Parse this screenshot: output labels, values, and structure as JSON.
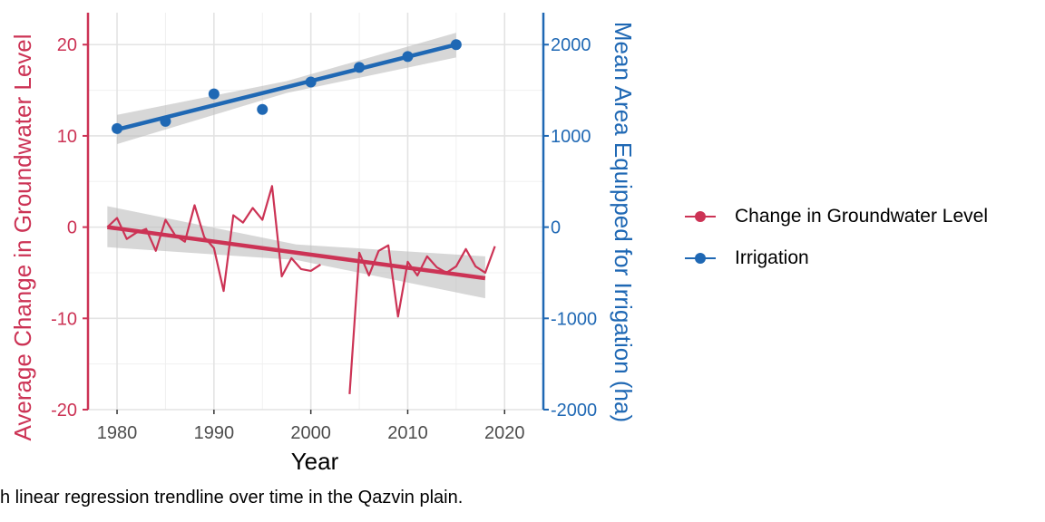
{
  "caption": "h linear regression trendline over time in the Qazvin plain.",
  "chart_data": {
    "type": "line",
    "xlabel": "Year",
    "ylabel_left": "Average Change in Groundwater Level",
    "ylabel_right": "Mean Area Equipped for Irrigation (ha)",
    "xlim": [
      1977,
      2024
    ],
    "ylim_left": [
      -20,
      23.5
    ],
    "ylim_right": [
      -2000,
      2350
    ],
    "x_ticks": [
      1980,
      1990,
      2000,
      2010,
      2020
    ],
    "x_tick_labels": [
      "1980",
      "1990",
      "2000",
      "2010",
      "2020"
    ],
    "y_left_ticks": [
      -20,
      -10,
      0,
      10,
      20
    ],
    "y_left_tick_labels": [
      "-20",
      "-10",
      "0",
      "10",
      "20"
    ],
    "y_right_ticks": [
      -2000,
      -1000,
      0,
      1000,
      2000
    ],
    "y_right_tick_labels": [
      "-2000",
      "-1000",
      "0",
      "1000",
      "2000"
    ],
    "grid": true,
    "legend_position": "right",
    "series": [
      {
        "name": "Change in Groundwater Level",
        "axis": "left",
        "color": "#cc3355",
        "style": "line",
        "segments": [
          [
            [
              1979,
              0.0
            ],
            [
              1980,
              1.0
            ],
            [
              1981,
              -1.3
            ],
            [
              1982,
              -0.6
            ],
            [
              1983,
              -0.2
            ],
            [
              1984,
              -2.6
            ],
            [
              1985,
              0.8
            ],
            [
              1986,
              -0.9
            ],
            [
              1987,
              -1.6
            ],
            [
              1988,
              2.4
            ],
            [
              1989,
              -1.1
            ],
            [
              1990,
              -2.3
            ],
            [
              1991,
              -7.0
            ],
            [
              1992,
              1.3
            ],
            [
              1993,
              0.5
            ],
            [
              1994,
              2.1
            ],
            [
              1995,
              0.8
            ],
            [
              1996,
              4.5
            ],
            [
              1997,
              -5.4
            ],
            [
              1998,
              -3.4
            ],
            [
              1999,
              -4.6
            ],
            [
              2000,
              -4.8
            ],
            [
              2001,
              -4.1
            ]
          ],
          [
            [
              2004,
              -18.3
            ],
            [
              2005,
              -2.8
            ],
            [
              2006,
              -5.3
            ],
            [
              2007,
              -2.6
            ],
            [
              2008,
              -2.0
            ],
            [
              2009,
              -9.8
            ],
            [
              2010,
              -3.8
            ],
            [
              2011,
              -5.3
            ],
            [
              2012,
              -3.2
            ],
            [
              2013,
              -4.4
            ],
            [
              2014,
              -5.0
            ],
            [
              2015,
              -4.3
            ],
            [
              2016,
              -2.4
            ],
            [
              2017,
              -4.3
            ],
            [
              2018,
              -5.0
            ],
            [
              2019,
              -2.1
            ]
          ]
        ],
        "trend": {
          "x": [
            1979,
            2018
          ],
          "y": [
            0.0,
            -5.6
          ],
          "ci_upper": [
            2.3,
            -3.2
          ],
          "ci_lower": [
            -2.2,
            -7.8
          ],
          "ci_mid_x": 1998.5,
          "ci_mid_upper": -1.9,
          "ci_mid_lower": -3.6
        }
      },
      {
        "name": "Irrigation",
        "axis": "right",
        "color": "#1f68b4",
        "style": "points",
        "x": [
          1980,
          1985,
          1990,
          1995,
          2000,
          2005,
          2010,
          2015
        ],
        "y": [
          1080,
          1160,
          1460,
          1290,
          1590,
          1750,
          1870,
          2000
        ],
        "trend": {
          "x": [
            1980,
            2015
          ],
          "y": [
            1070,
            2000
          ],
          "ci_upper": [
            1230,
            2130
          ],
          "ci_lower": [
            910,
            1860
          ],
          "ci_mid_x": 1997.5,
          "ci_mid_upper": 1600,
          "ci_mid_lower": 1470
        }
      }
    ]
  }
}
